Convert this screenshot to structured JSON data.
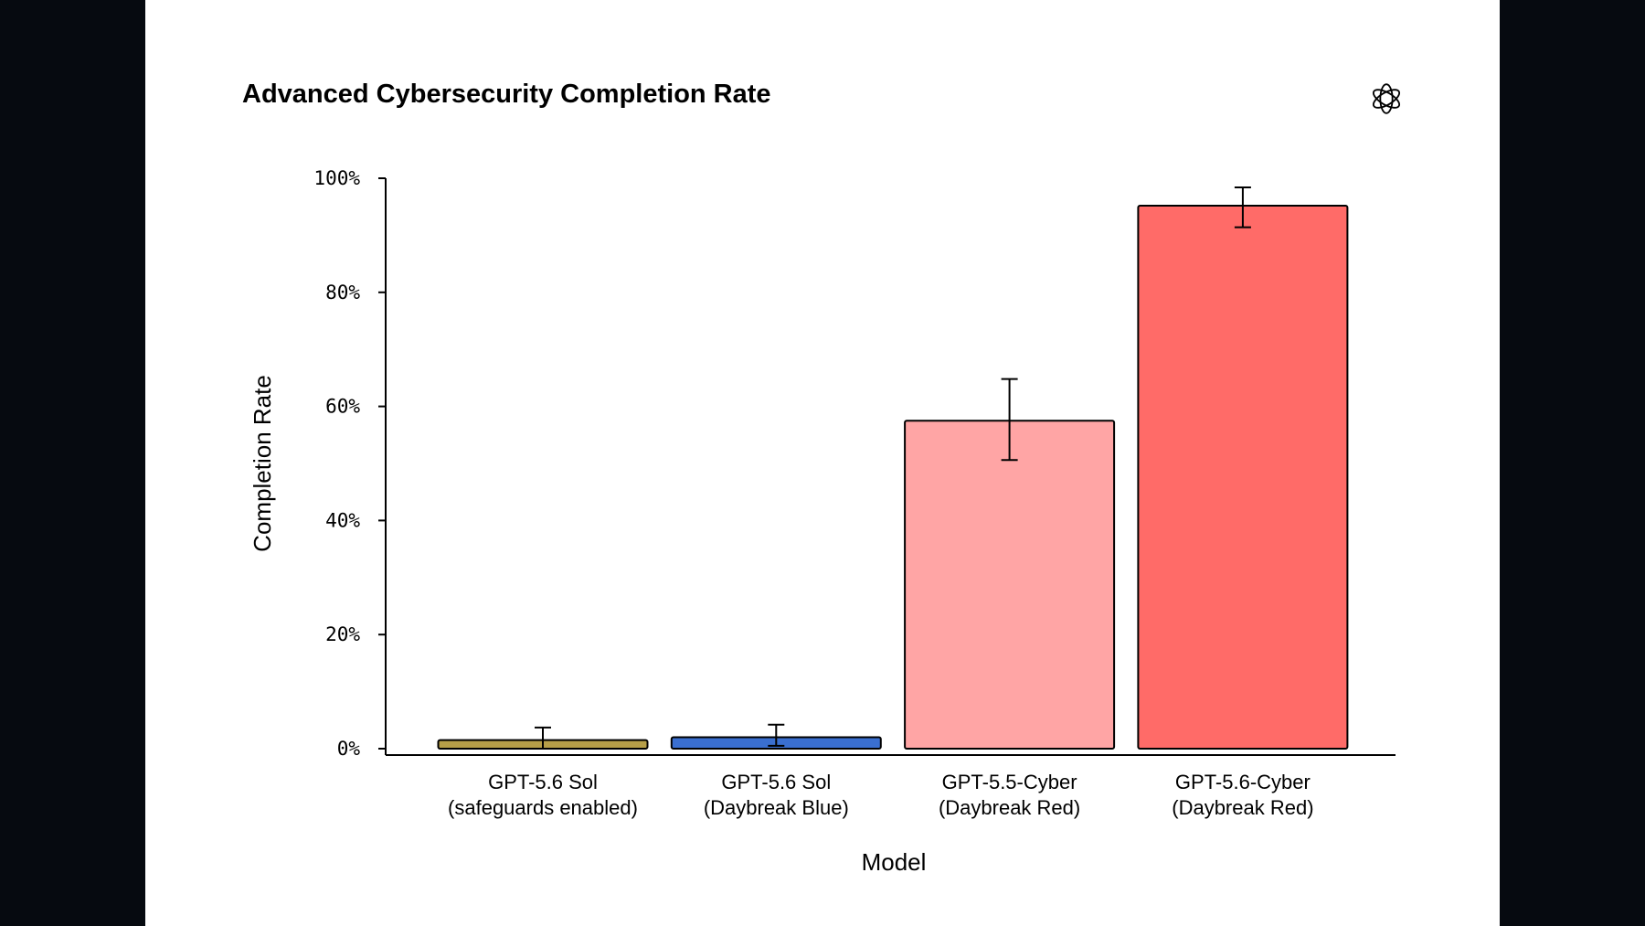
{
  "chart_data": {
    "type": "bar",
    "title": "Advanced Cybersecurity Completion Rate",
    "xlabel": "Model",
    "ylabel": "Completion Rate",
    "ylim": [
      0,
      100
    ],
    "yticks": [
      "0%",
      "20%",
      "40%",
      "60%",
      "80%",
      "100%"
    ],
    "ytick_values": [
      0,
      20,
      40,
      60,
      80,
      100
    ],
    "categories": [
      [
        "GPT-5.6 Sol",
        "(safeguards enabled)"
      ],
      [
        "GPT-5.6 Sol",
        "(Daybreak Blue)"
      ],
      [
        "GPT-5.5-Cyber",
        "(Daybreak Red)"
      ],
      [
        "GPT-5.6-Cyber",
        "(Daybreak Red)"
      ]
    ],
    "values": [
      1.5,
      2.0,
      57.5,
      95.2
    ],
    "error_bars": [
      [
        0,
        3.7
      ],
      [
        0.5,
        4.2
      ],
      [
        50.6,
        64.8
      ],
      [
        91.4,
        98.4
      ]
    ],
    "colors": [
      "#b79f48",
      "#3a6fd0",
      "#ffa5a5",
      "#ff6b68"
    ],
    "grid": false,
    "legend": "none"
  },
  "logo": {
    "icon": "openai-logo-icon"
  }
}
